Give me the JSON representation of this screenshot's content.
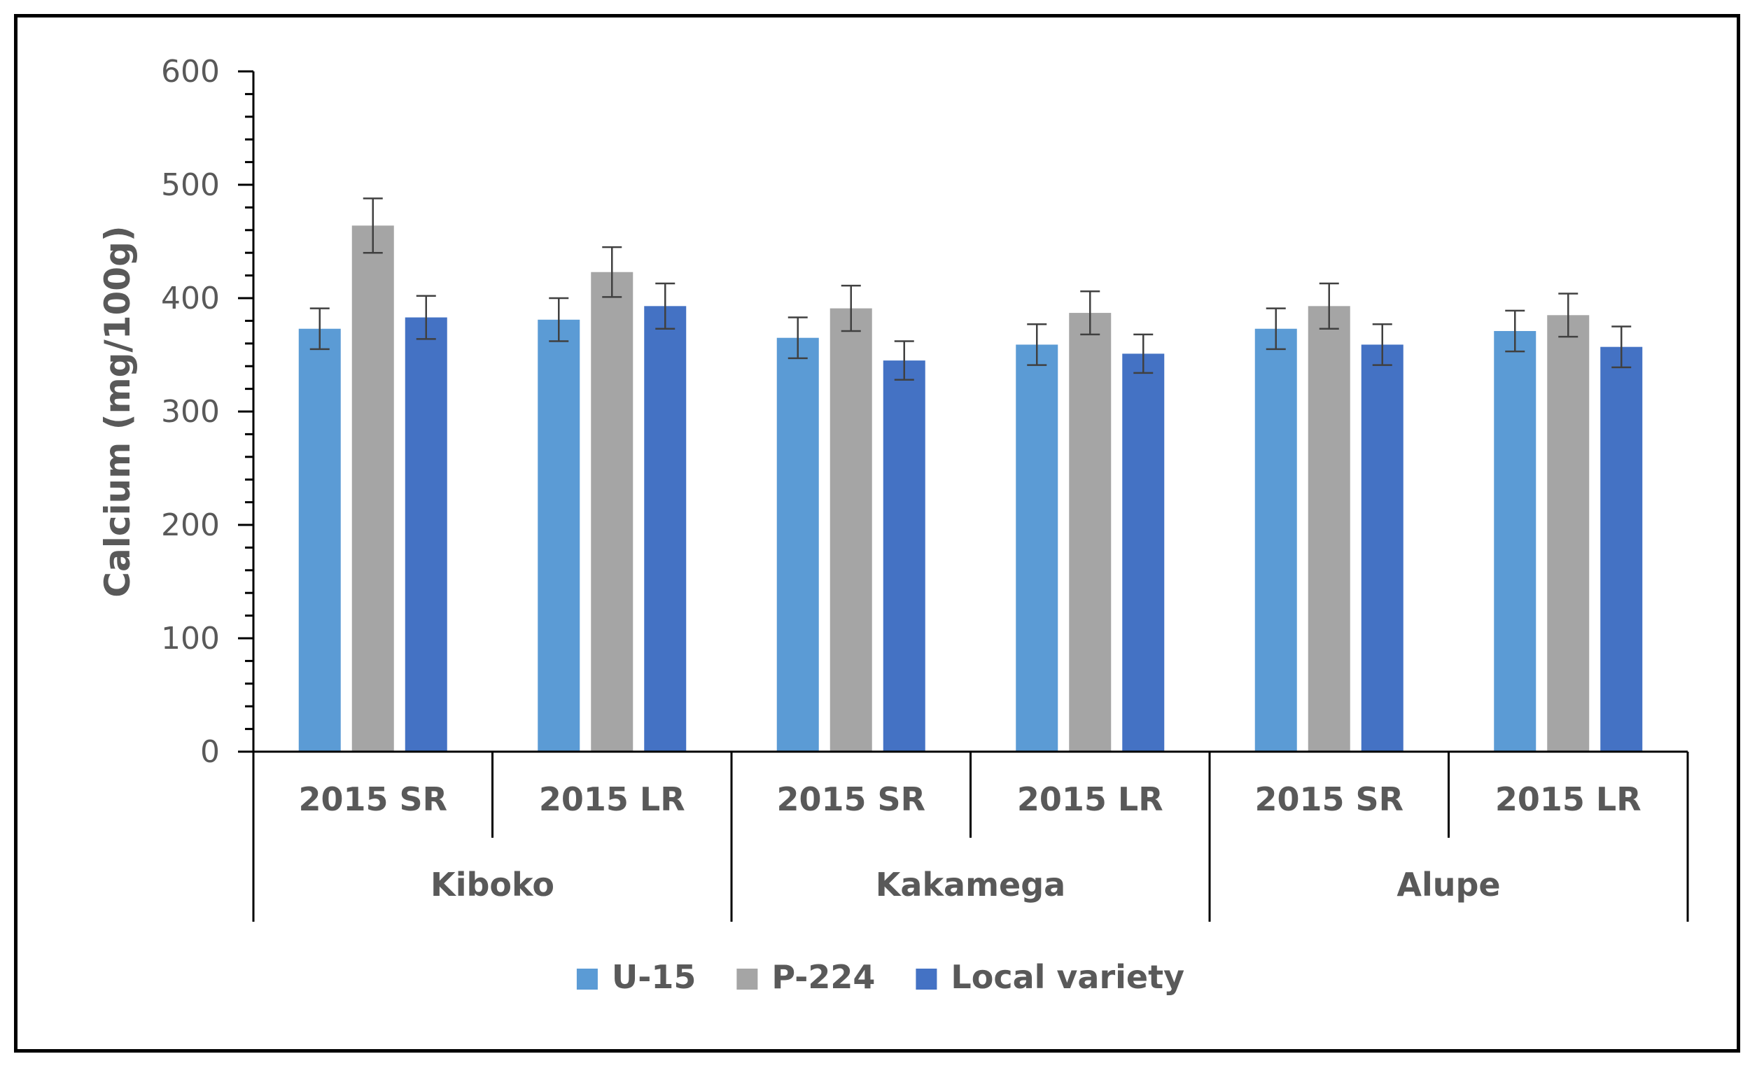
{
  "chart_data": {
    "type": "bar",
    "title": "",
    "xlabel": "",
    "ylabel": "Calcium (mg/100g)",
    "ylim": [
      0,
      600
    ],
    "ytick_step": 100,
    "yminor_step": 20,
    "yticks": [
      "0",
      "100",
      "200",
      "300",
      "400",
      "500",
      "600"
    ],
    "groups": [
      {
        "name": "Kiboko",
        "categories": [
          "2015 SR",
          "2015 LR"
        ]
      },
      {
        "name": "Kakamega",
        "categories": [
          "2015 SR",
          "2015 LR"
        ]
      },
      {
        "name": "Alupe",
        "categories": [
          "2015 SR",
          "2015 LR"
        ]
      }
    ],
    "categories": [
      "2015 SR",
      "2015 LR",
      "2015 SR",
      "2015 LR",
      "2015 SR",
      "2015 LR"
    ],
    "series": [
      {
        "name": "U-15",
        "color": "#5B9BD5",
        "values": [
          373,
          381,
          365,
          359,
          373,
          371
        ],
        "errors": [
          18,
          19,
          18,
          18,
          18,
          18
        ]
      },
      {
        "name": "P-224",
        "color": "#A5A5A5",
        "values": [
          464,
          423,
          391,
          387,
          393,
          385
        ],
        "errors": [
          24,
          22,
          20,
          19,
          20,
          19
        ]
      },
      {
        "name": "Local variety",
        "color": "#4472C4",
        "values": [
          383,
          393,
          345,
          351,
          359,
          357
        ],
        "errors": [
          19,
          20,
          17,
          17,
          18,
          18
        ]
      }
    ],
    "legend_position": "bottom",
    "grid": false
  }
}
